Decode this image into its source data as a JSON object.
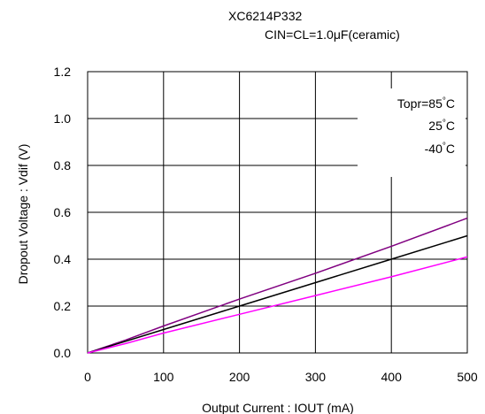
{
  "header": {
    "part_number": "XC6214P332",
    "condition": "CIN=CL=1.0μF(ceramic)"
  },
  "chart_data": {
    "type": "line",
    "title": "XC6214P332",
    "subtitle": "CIN=CL=1.0μF(ceramic)",
    "xlabel": "Output Current : IOUT (mA)",
    "ylabel": "Dropout Voltage : Vdif (V)",
    "xlim": [
      0,
      500
    ],
    "ylim": [
      0,
      1.2
    ],
    "xticks": [
      0,
      100,
      200,
      300,
      400,
      500
    ],
    "yticks": [
      0.0,
      0.2,
      0.4,
      0.6,
      0.8,
      1.0,
      1.2
    ],
    "xtick_labels": [
      "0",
      "100",
      "200",
      "300",
      "400",
      "500"
    ],
    "ytick_labels": [
      "0.0",
      "0.2",
      "0.4",
      "0.6",
      "0.8",
      "1.0",
      "1.2"
    ],
    "grid": true,
    "legend_position": "top-right",
    "legend": {
      "prefix": "Topr=",
      "entries": [
        "85",
        "25",
        "-40"
      ],
      "unit": "°C"
    },
    "series": [
      {
        "name": "85°C",
        "color": "#800080",
        "x": [
          0,
          50,
          100,
          200,
          300,
          400,
          500
        ],
        "y": [
          0,
          0.055,
          0.115,
          0.23,
          0.34,
          0.455,
          0.575
        ]
      },
      {
        "name": "25°C",
        "color": "#000000",
        "x": [
          0,
          50,
          100,
          200,
          300,
          400,
          500
        ],
        "y": [
          0,
          0.05,
          0.1,
          0.2,
          0.3,
          0.4,
          0.5
        ]
      },
      {
        "name": "-40°C",
        "color": "#ff00ff",
        "x": [
          0,
          50,
          100,
          200,
          300,
          400,
          500
        ],
        "y": [
          0,
          0.04,
          0.085,
          0.165,
          0.245,
          0.325,
          0.41
        ]
      }
    ]
  }
}
